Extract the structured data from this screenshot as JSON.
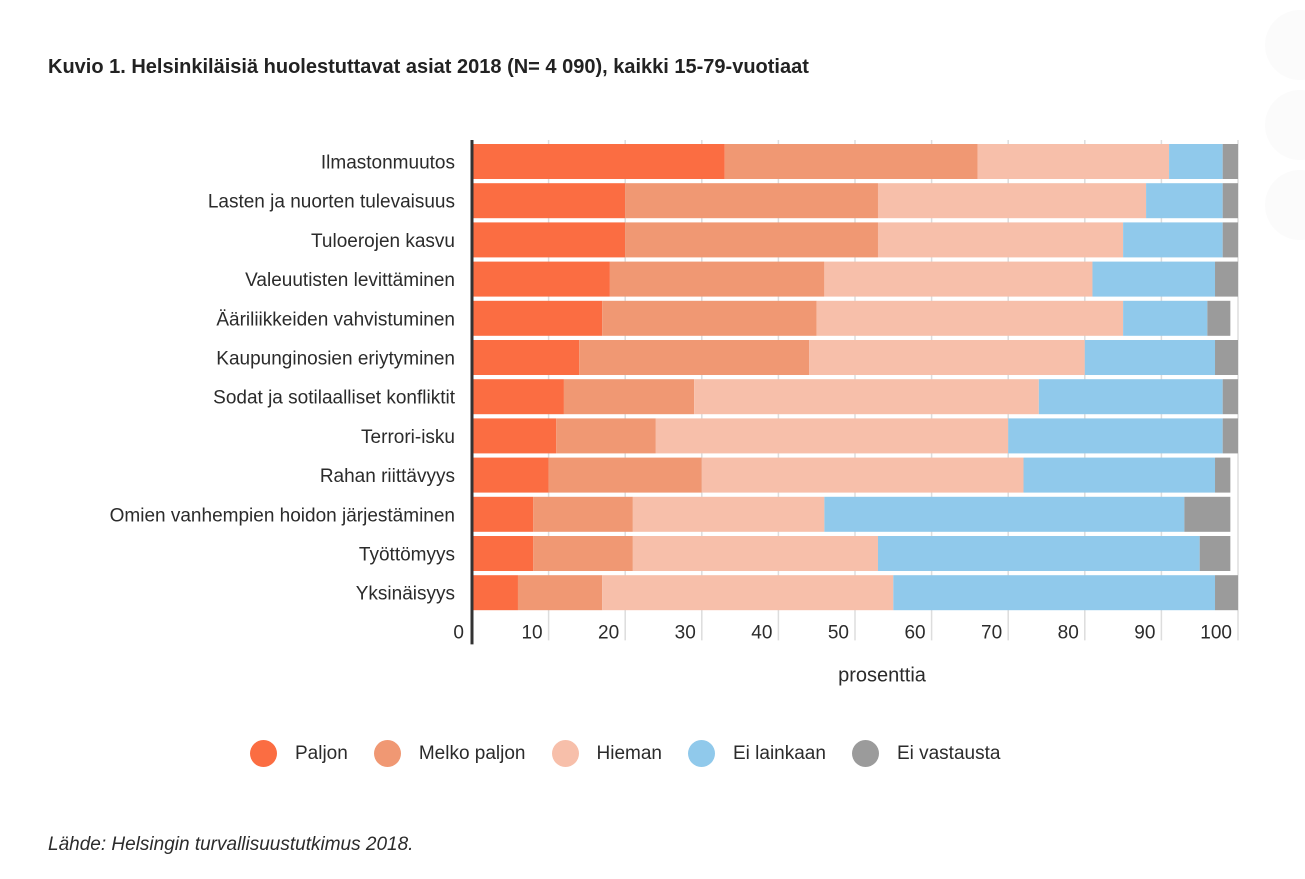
{
  "title": "Kuvio 1. Helsinkiläisiä huolestuttavat asiat 2018 (N= 4 090), kaikki 15-79-vuotiaat",
  "source": "Lähde: Helsingin turvallisuustutkimus 2018.",
  "chart_data": {
    "type": "bar",
    "orientation": "horizontal",
    "stacked": true,
    "title": "Kuvio 1. Helsinkiläisiä huolestuttavat asiat 2018 (N= 4 090), kaikki 15-79-vuotiaat",
    "xlabel": "prosenttia",
    "ylabel": "",
    "xlim": [
      0,
      100
    ],
    "xticks": [
      0,
      10,
      20,
      30,
      40,
      50,
      60,
      70,
      80,
      90,
      100
    ],
    "grid": true,
    "legend_position": "bottom",
    "categories": [
      "Ilmastonmuutos",
      "Lasten ja nuorten tulevaisuus",
      "Tuloerojen kasvu",
      "Valeuutisten levittäminen",
      "Ääriliikkeiden vahvistuminen",
      "Kaupunginosien eriytyminen",
      "Sodat ja sotilaalliset konfliktit",
      "Terrori-isku",
      "Rahan riittävyys",
      "Omien vanhempien hoidon järjestäminen",
      "Työttömyys",
      "Yksinäisyys"
    ],
    "series": [
      {
        "name": "Paljon",
        "color": "#fb6d42",
        "values": [
          33,
          20,
          20,
          18,
          17,
          14,
          12,
          11,
          10,
          8,
          8,
          6
        ]
      },
      {
        "name": "Melko paljon",
        "color": "#f09873",
        "values": [
          33,
          33,
          33,
          28,
          28,
          30,
          17,
          13,
          20,
          13,
          13,
          11
        ]
      },
      {
        "name": "Hieman",
        "color": "#f7bfaa",
        "values": [
          25,
          35,
          32,
          35,
          40,
          36,
          45,
          46,
          42,
          25,
          32,
          38
        ]
      },
      {
        "name": "Ei lainkaan",
        "color": "#90c9eb",
        "values": [
          7,
          10,
          13,
          16,
          11,
          17,
          24,
          28,
          25,
          47,
          42,
          42
        ]
      },
      {
        "name": "Ei vastausta",
        "color": "#9b9b9b",
        "values": [
          2,
          2,
          2,
          3,
          3,
          3,
          2,
          2,
          2,
          6,
          4,
          3
        ]
      }
    ]
  }
}
